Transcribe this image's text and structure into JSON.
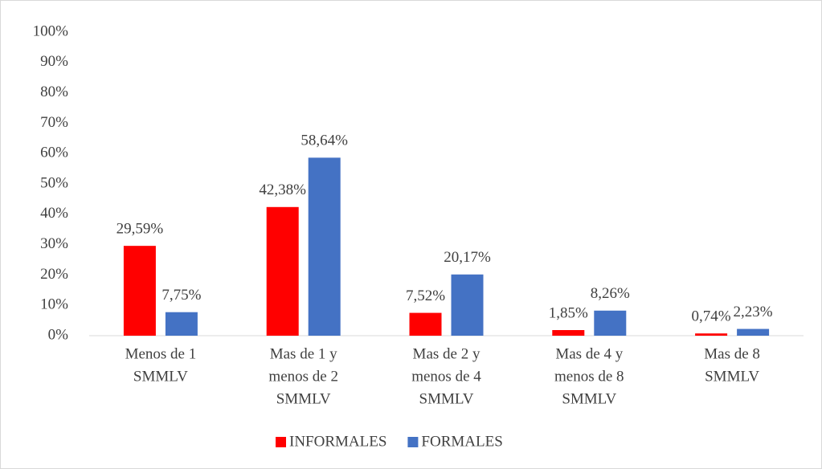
{
  "chart_data": {
    "type": "bar",
    "categories": [
      [
        "Menos de 1",
        "SMMLV"
      ],
      [
        "Mas de 1  y",
        "menos de 2",
        "SMMLV"
      ],
      [
        "Mas de 2  y",
        "menos de 4",
        "SMMLV"
      ],
      [
        "Mas de 4  y",
        "menos de 8",
        "SMMLV"
      ],
      [
        "Mas de 8",
        "SMMLV"
      ]
    ],
    "series": [
      {
        "name": "INFORMALES",
        "color": "#ff0000",
        "values": [
          29.59,
          42.38,
          7.52,
          1.85,
          0.74
        ],
        "value_labels": [
          "29,59%",
          "42,38%",
          "7,52%",
          "1,85%",
          "0,74%"
        ]
      },
      {
        "name": "FORMALES",
        "color": "#4472c4",
        "values": [
          7.75,
          58.64,
          20.17,
          8.26,
          2.23
        ],
        "value_labels": [
          "7,75%",
          "58,64%",
          "20,17%",
          "8,26%",
          "2,23%"
        ]
      }
    ],
    "ylim": [
      0,
      100
    ],
    "yticks": [
      {
        "value": 0,
        "label": "0%"
      },
      {
        "value": 10,
        "label": "10%"
      },
      {
        "value": 20,
        "label": "20%"
      },
      {
        "value": 30,
        "label": "30%"
      },
      {
        "value": 40,
        "label": "40%"
      },
      {
        "value": 50,
        "label": "50%"
      },
      {
        "value": 60,
        "label": "60%"
      },
      {
        "value": 70,
        "label": "70%"
      },
      {
        "value": 80,
        "label": "80%"
      },
      {
        "value": 90,
        "label": "90%"
      },
      {
        "value": 100,
        "label": "100%"
      }
    ],
    "grid": false,
    "legend": "bottom"
  }
}
